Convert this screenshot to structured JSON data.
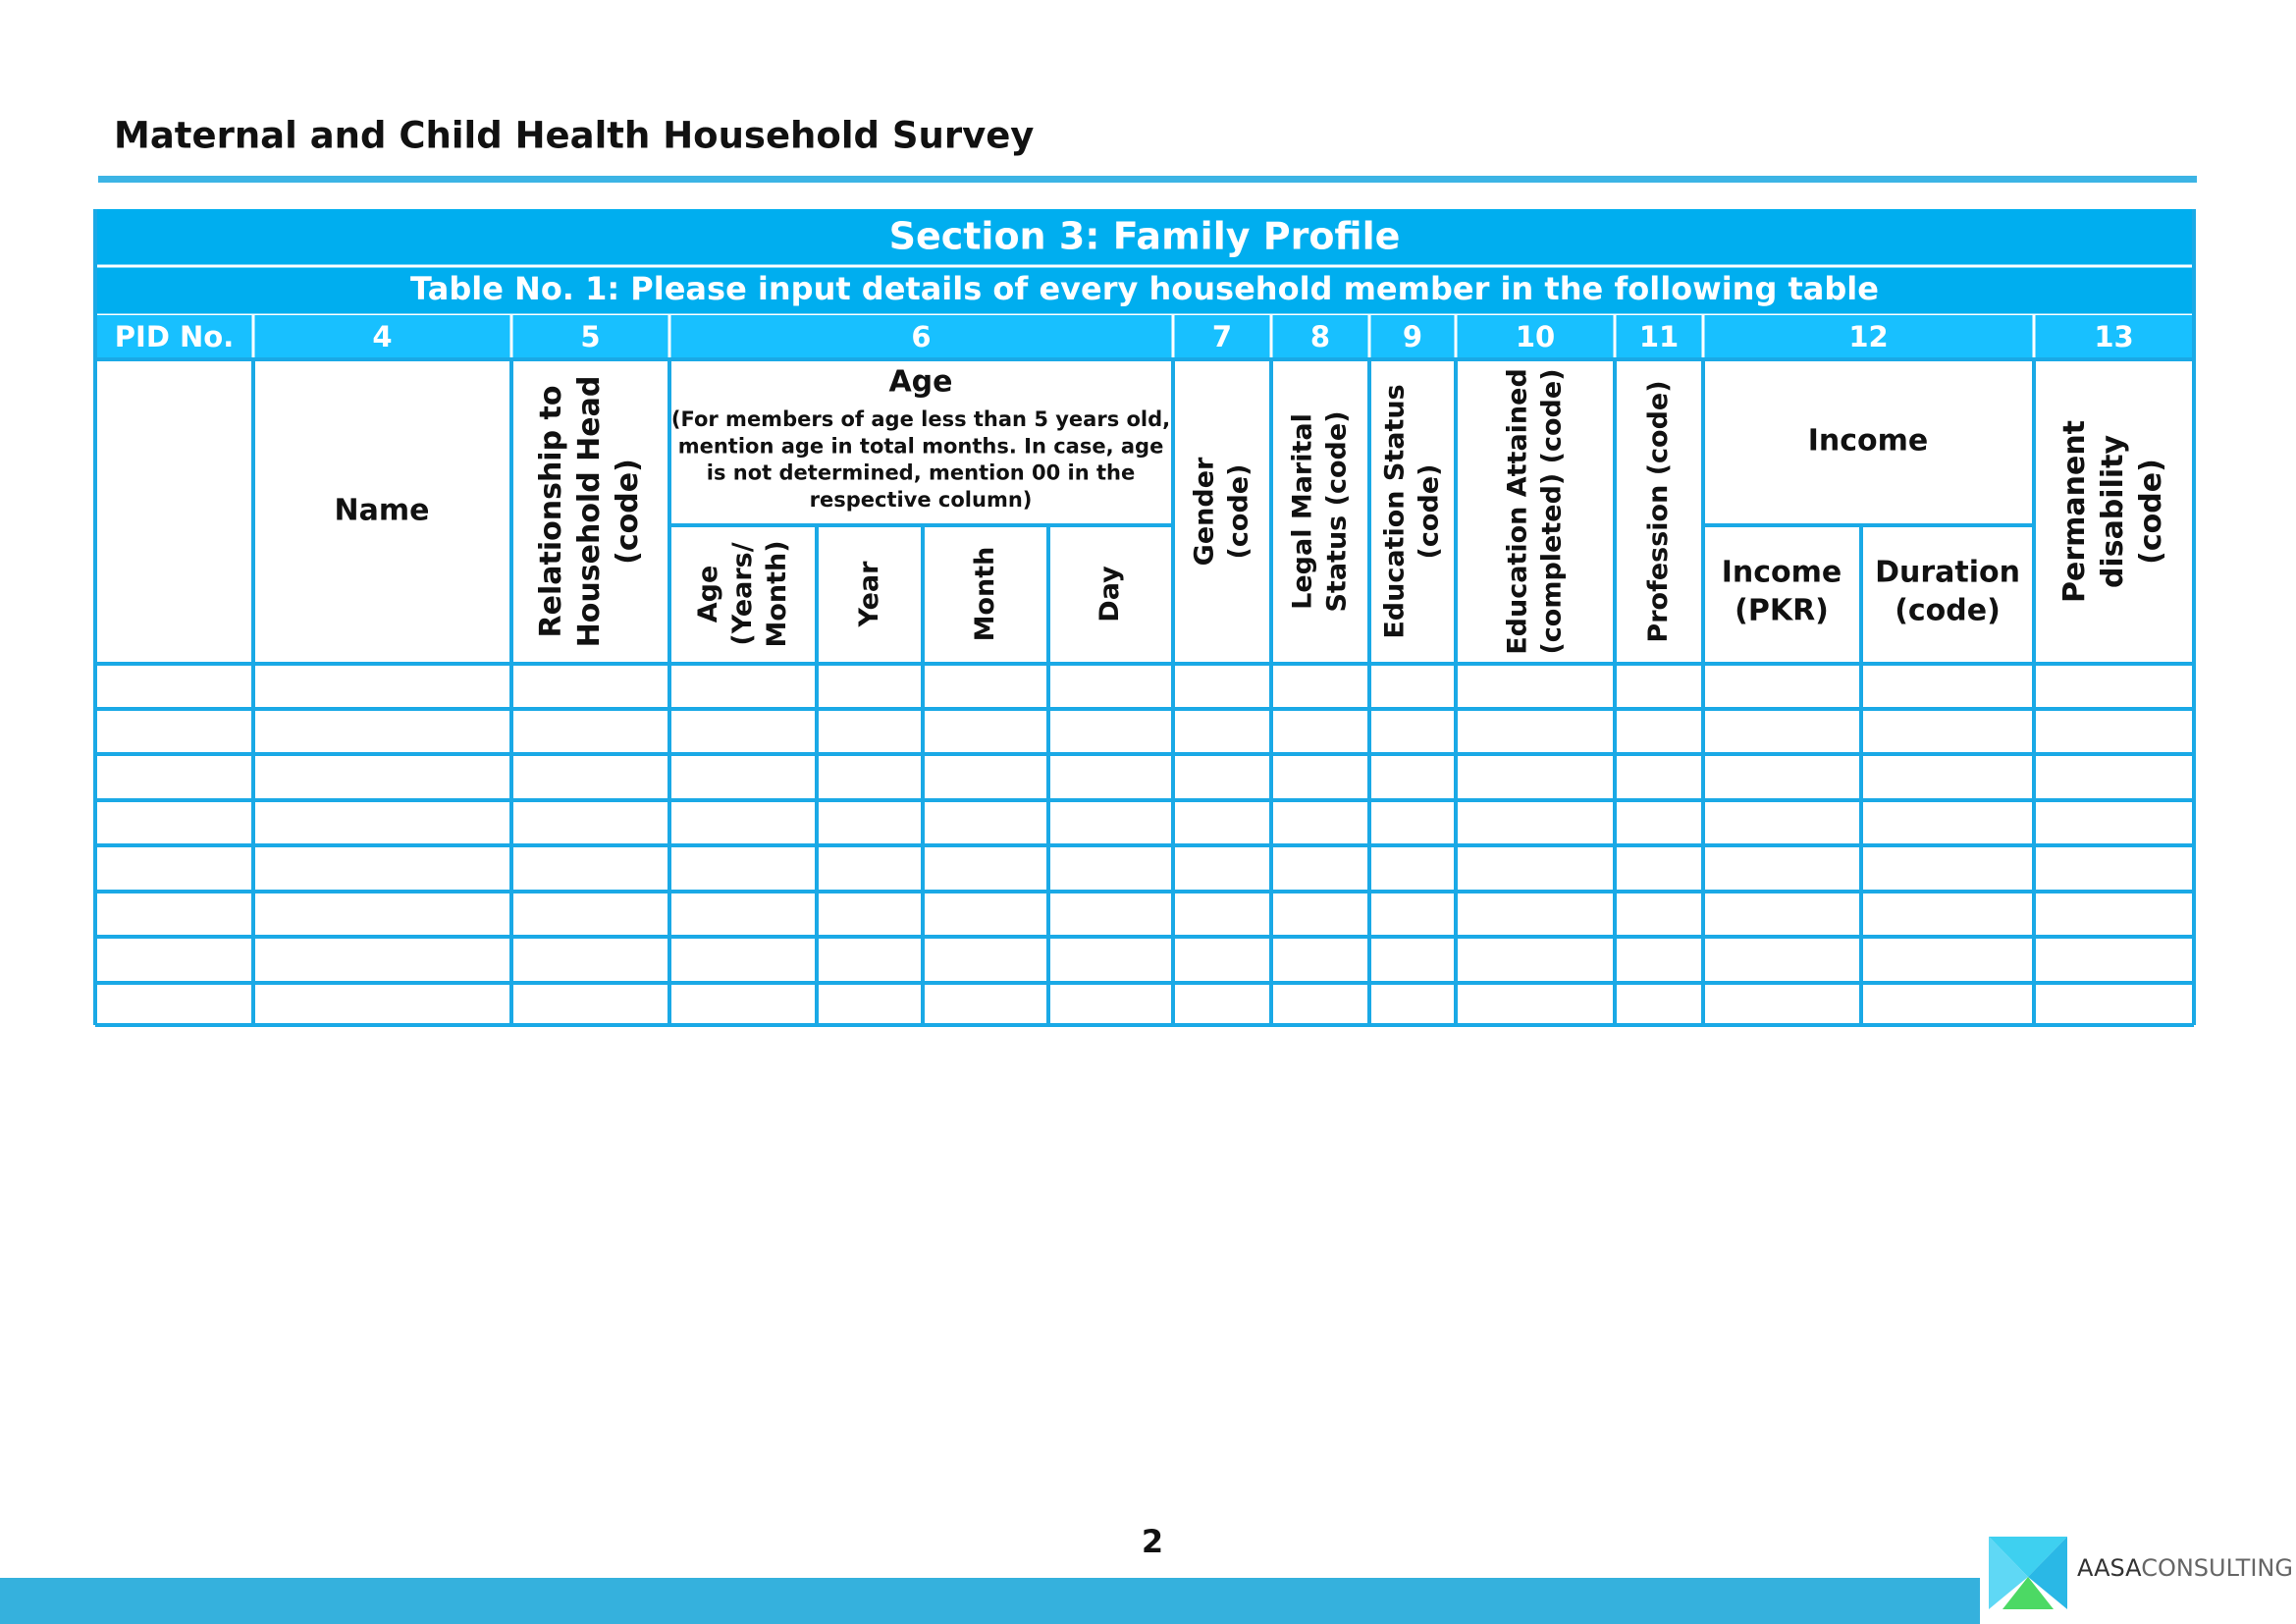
{
  "header": {
    "title": "Maternal and Child Health Household Survey"
  },
  "section": {
    "title": "Section 3: Family Profile",
    "caption": "Table No. 1: Please input details of every household member in the following table"
  },
  "table": {
    "column_numbers": [
      "PID No.",
      "4",
      "5",
      "6",
      "7",
      "8",
      "9",
      "10",
      "11",
      "12",
      "13"
    ],
    "name": "Name",
    "relationship": [
      "Relationship to",
      "Household Head",
      "(code)"
    ],
    "age": {
      "title": "Age",
      "note": [
        "(For members of age less than 5 years old,",
        "mention age in total months. In case, age",
        "is not determined, mention 00 in the",
        "respective column)"
      ],
      "years_month": [
        "Age",
        "(Years/",
        "Month)"
      ],
      "year": [
        "Year"
      ],
      "month": [
        "Month"
      ],
      "day": [
        "Day"
      ]
    },
    "gender": [
      "Gender",
      "(code)"
    ],
    "marital": [
      "Legal Marital",
      "Status (code)"
    ],
    "education_status": [
      "Education Status",
      "(code)"
    ],
    "education_attained": [
      "Education Attained",
      "(completed) (code)"
    ],
    "profession": [
      "Profession (code)"
    ],
    "income": {
      "title": "Income",
      "pkr": [
        "Income",
        "(PKR)"
      ],
      "duration": [
        "Duration",
        "(code)"
      ]
    },
    "disability": [
      "Permanent",
      "disability",
      "(code)"
    ]
  },
  "footer": {
    "page_number": "2",
    "logo": [
      "AASA",
      "CONSULTING"
    ]
  }
}
